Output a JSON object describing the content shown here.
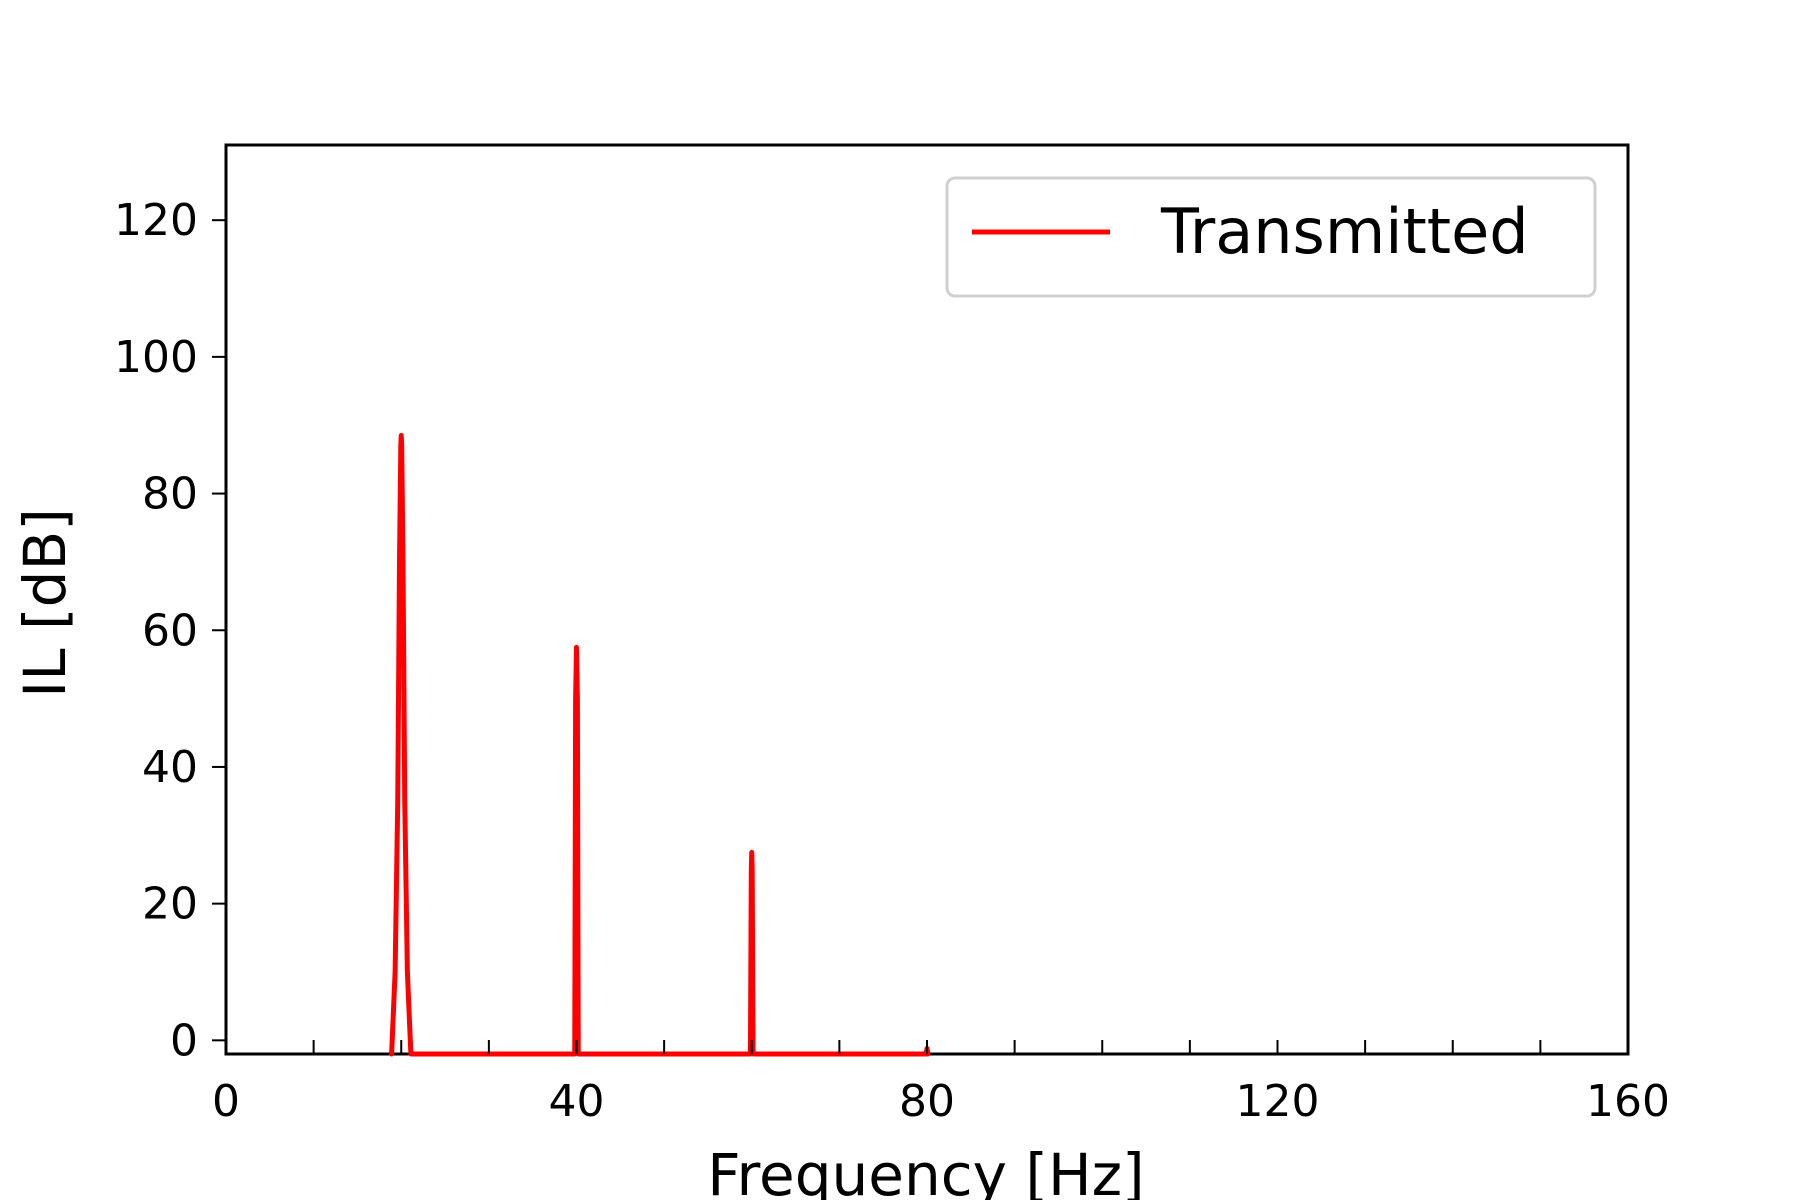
{
  "chart_data": {
    "type": "line",
    "title": "",
    "xlabel": "Frequency [Hz]",
    "ylabel": "IL [dB]",
    "xlim": [
      0,
      160
    ],
    "ylim": [
      -2,
      131
    ],
    "xticks": [
      0,
      40,
      80,
      120,
      160
    ],
    "yticks": [
      0,
      20,
      40,
      60,
      80,
      100,
      120
    ],
    "x_minor_step": 10,
    "grid": false,
    "legend_position": "top-right",
    "series": [
      {
        "name": "Transmitted",
        "color": "#ff0000",
        "x": [
          18.9,
          19.3,
          19.6,
          19.8,
          19.95,
          20.0,
          20.05,
          20.2,
          20.4,
          20.7,
          21.1,
          39.8,
          39.9,
          40.0,
          40.1,
          40.2,
          59.85,
          59.95,
          60.0,
          60.05,
          60.15,
          79.9,
          80.0,
          80.1
        ],
        "y": [
          -2,
          10,
          35,
          70,
          87,
          88.5,
          87,
          70,
          35,
          10,
          -2,
          -2,
          50,
          57.5,
          50,
          -2,
          -2,
          25,
          27.5,
          25,
          -2,
          -2,
          -1.2,
          -2
        ]
      }
    ]
  }
}
